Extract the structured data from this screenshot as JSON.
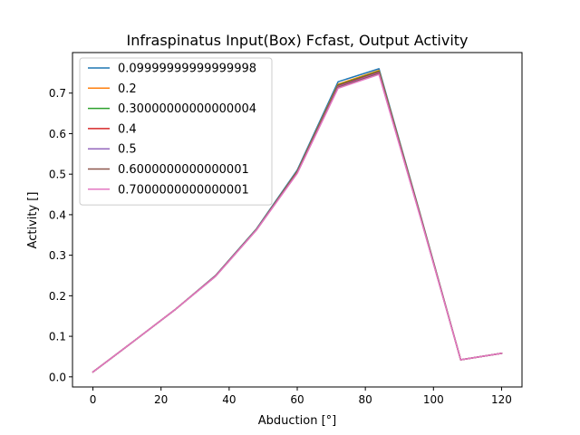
{
  "chart_data": {
    "type": "line",
    "title": "Infraspinatus Input(Box) Fcfast, Output Activity",
    "xlabel": "Abduction [°]",
    "ylabel": "Activity []",
    "xlim": [
      -6,
      126
    ],
    "ylim": [
      -0.025,
      0.8
    ],
    "xticks": [
      0,
      20,
      40,
      60,
      80,
      100,
      120
    ],
    "yticks": [
      0.0,
      0.1,
      0.2,
      0.3,
      0.4,
      0.5,
      0.6,
      0.7
    ],
    "xtick_labels": [
      "0",
      "20",
      "40",
      "60",
      "80",
      "100",
      "120"
    ],
    "ytick_labels": [
      "0.0",
      "0.1",
      "0.2",
      "0.3",
      "0.4",
      "0.5",
      "0.6",
      "0.7"
    ],
    "grid": false,
    "legend_position": "top-left",
    "x": [
      0,
      12,
      24,
      36,
      48,
      60,
      72,
      84,
      96,
      108,
      120
    ],
    "series": [
      {
        "name": "0.09999999999999998",
        "color": "#1f77b4",
        "values": [
          0.012,
          0.088,
          0.165,
          0.25,
          0.365,
          0.51,
          0.728,
          0.76,
          0.405,
          0.042,
          0.058
        ]
      },
      {
        "name": "0.2",
        "color": "#ff7f0e",
        "values": [
          0.012,
          0.088,
          0.165,
          0.249,
          0.364,
          0.507,
          0.722,
          0.756,
          0.403,
          0.042,
          0.058
        ]
      },
      {
        "name": "0.30000000000000004",
        "color": "#2ca02c",
        "values": [
          0.012,
          0.088,
          0.165,
          0.249,
          0.364,
          0.506,
          0.72,
          0.754,
          0.402,
          0.042,
          0.058
        ]
      },
      {
        "name": "0.4",
        "color": "#d62728",
        "values": [
          0.012,
          0.088,
          0.165,
          0.249,
          0.363,
          0.505,
          0.718,
          0.752,
          0.401,
          0.042,
          0.058
        ]
      },
      {
        "name": "0.5",
        "color": "#9467bd",
        "values": [
          0.012,
          0.088,
          0.165,
          0.248,
          0.363,
          0.504,
          0.716,
          0.75,
          0.4,
          0.042,
          0.058
        ]
      },
      {
        "name": "0.6000000000000001",
        "color": "#8c564b",
        "values": [
          0.012,
          0.088,
          0.165,
          0.248,
          0.362,
          0.503,
          0.714,
          0.748,
          0.399,
          0.042,
          0.058
        ]
      },
      {
        "name": "0.7000000000000001",
        "color": "#e377c2",
        "values": [
          0.012,
          0.088,
          0.165,
          0.248,
          0.362,
          0.502,
          0.712,
          0.746,
          0.398,
          0.042,
          0.058
        ]
      }
    ]
  }
}
